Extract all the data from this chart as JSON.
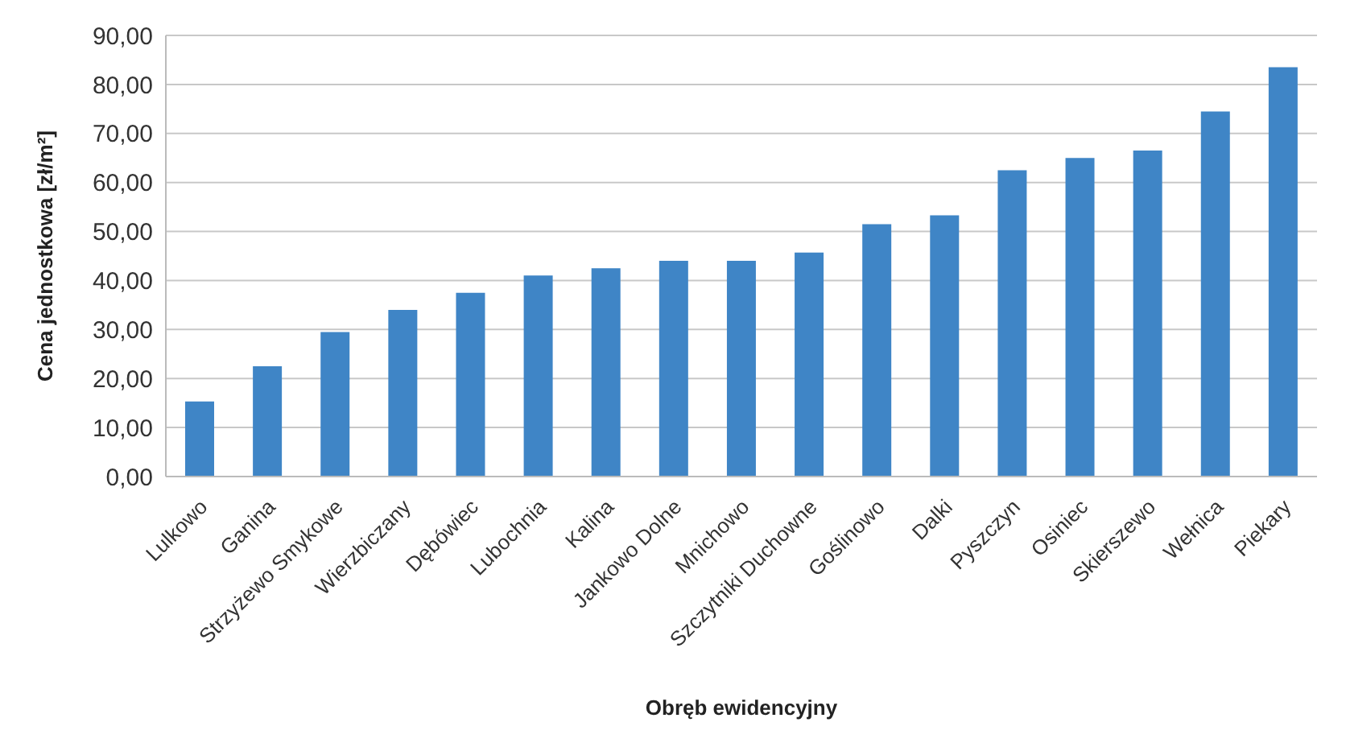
{
  "chart_data": {
    "type": "bar",
    "xlabel": "Obręb ewidencyjny",
    "ylabel": "Cena jednostkowa [zł/m²]",
    "categories": [
      "Lulkowo",
      "Ganina",
      "Strzyżewo Smykowe",
      "Wierzbiczany",
      "Dębówiec",
      "Lubochnia",
      "Kalina",
      "Jankowo Dolne",
      "Mnichowo",
      "Szczytniki Duchowne",
      "Goślinowo",
      "Dalki",
      "Pyszczyn",
      "Osiniec",
      "Skierszewo",
      "Wełnica",
      "Piekary"
    ],
    "values": [
      15.3,
      22.5,
      29.5,
      34,
      37.5,
      41,
      42.5,
      44,
      44,
      45.7,
      51.5,
      53.3,
      62.5,
      65,
      66.5,
      74.5,
      83.5
    ],
    "color": "#3f85c6",
    "ylim": [
      0,
      90
    ],
    "yticks": [
      {
        "value": 0,
        "label": "0,00"
      },
      {
        "value": 10,
        "label": "10,00"
      },
      {
        "value": 20,
        "label": "20,00"
      },
      {
        "value": 30,
        "label": "30,00"
      },
      {
        "value": 40,
        "label": "40,00"
      },
      {
        "value": 50,
        "label": "50,00"
      },
      {
        "value": 60,
        "label": "60,00"
      },
      {
        "value": 70,
        "label": "70,00"
      },
      {
        "value": 80,
        "label": "80,00"
      },
      {
        "value": 90,
        "label": "90,00"
      }
    ],
    "grid": "y"
  }
}
